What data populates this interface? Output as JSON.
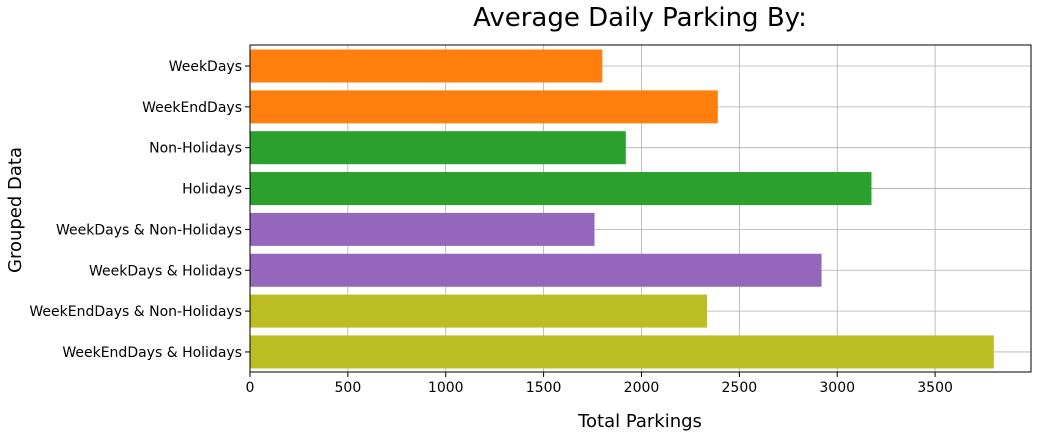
{
  "chart_data": {
    "type": "bar",
    "orientation": "horizontal",
    "title": "Average Daily Parking By:",
    "xlabel": "Total Parkings",
    "ylabel": "Grouped Data",
    "xlim": [
      0,
      3990
    ],
    "xticks": [
      0,
      500,
      1000,
      1500,
      2000,
      2500,
      3000,
      3500
    ],
    "grid": true,
    "categories": [
      "WeekDays",
      "WeekEndDays",
      "Non-Holidays",
      "Holidays",
      "WeekDays & Non-Holidays",
      "WeekDays & Holidays",
      "WeekEndDays & Non-Holidays",
      "WeekEndDays & Holidays"
    ],
    "values": [
      1800,
      2390,
      1920,
      3175,
      1760,
      2920,
      2335,
      3800
    ],
    "colors": [
      "#ff7f0e",
      "#ff7f0e",
      "#2ca02c",
      "#2ca02c",
      "#9467bd",
      "#9467bd",
      "#bcbd22",
      "#bcbd22"
    ]
  }
}
